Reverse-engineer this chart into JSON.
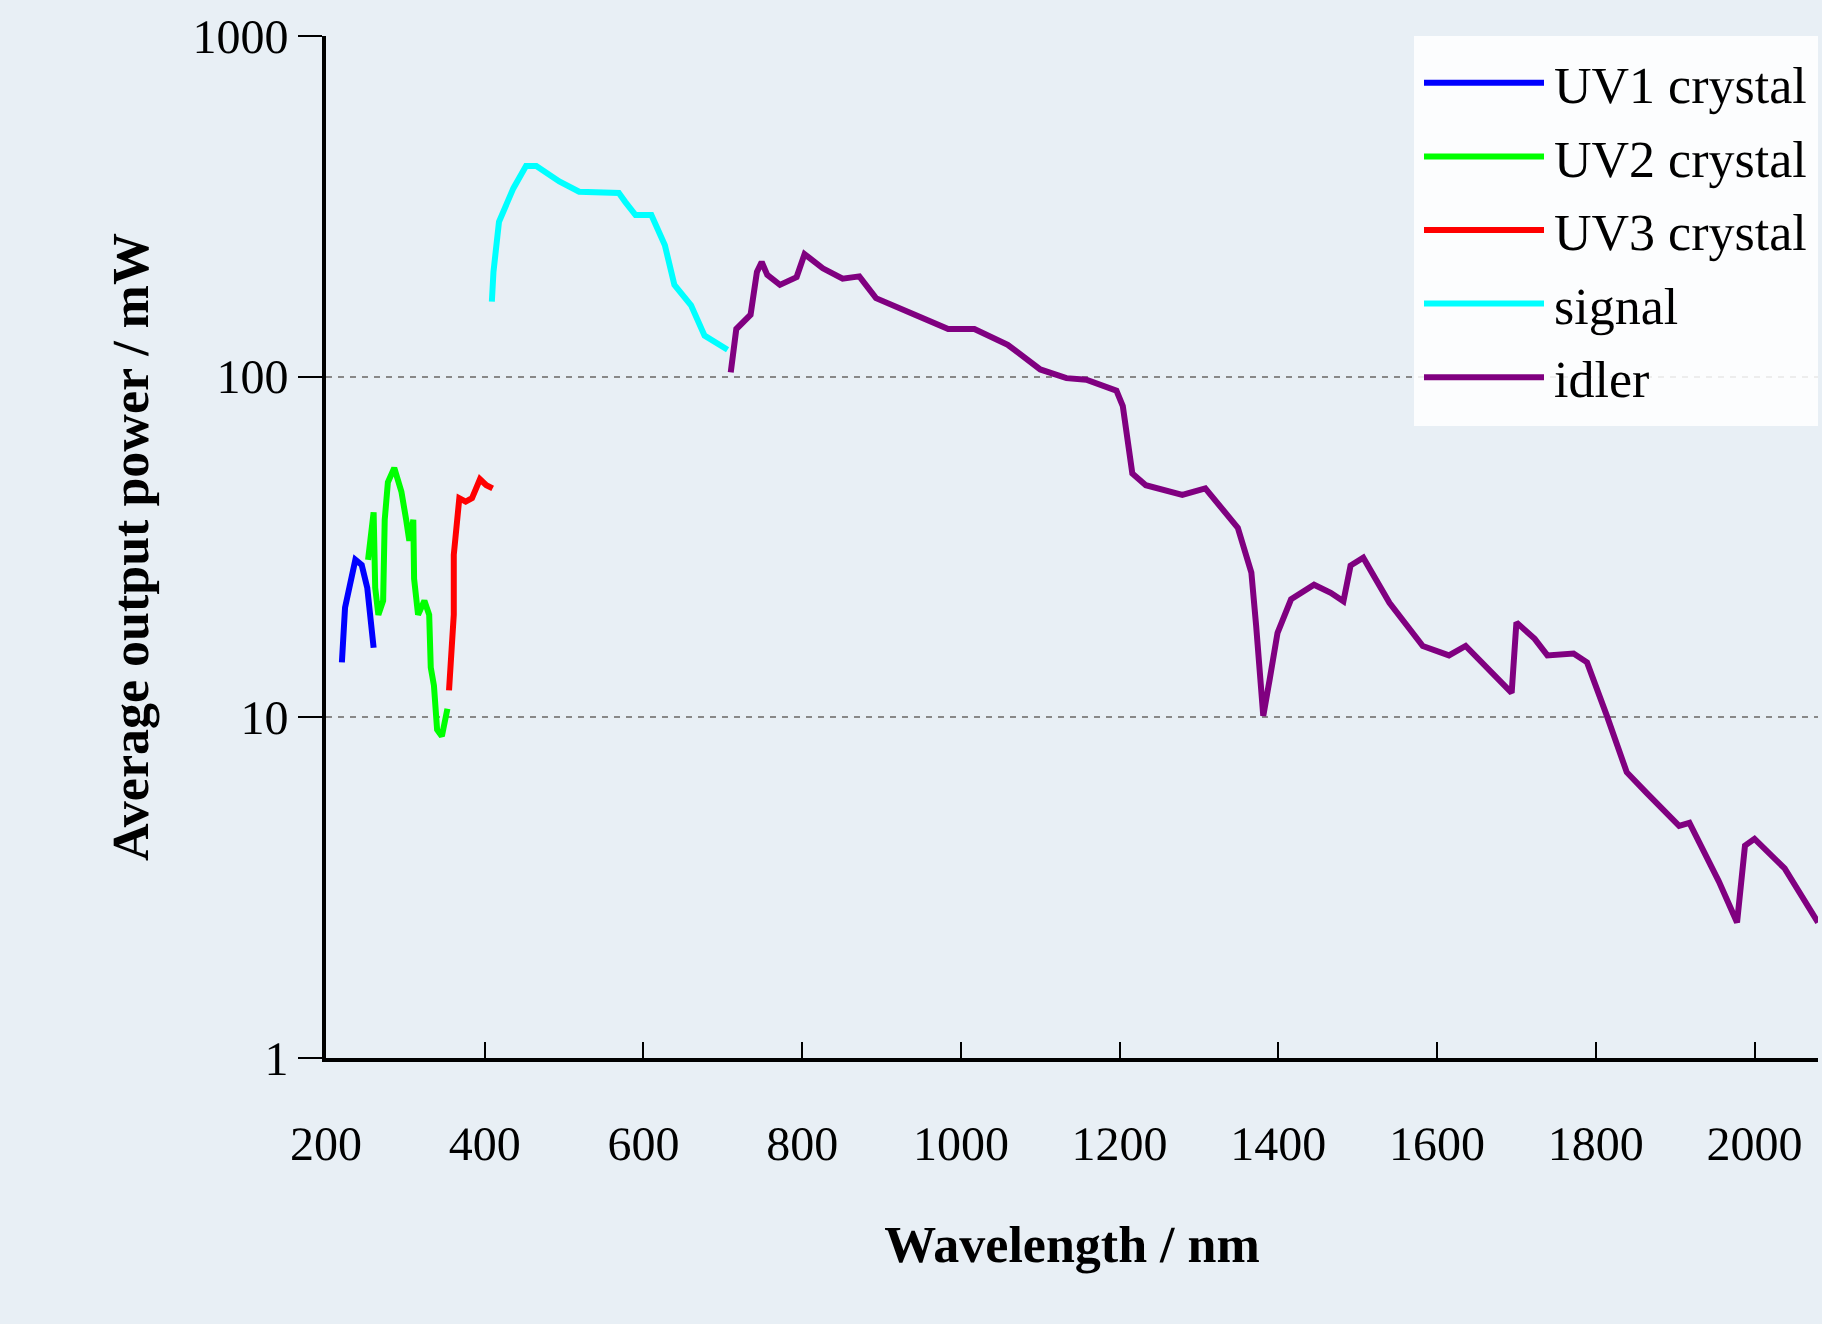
{
  "chart_data": {
    "type": "line",
    "xlabel": "Wavelength / nm",
    "ylabel": "Average output power / mW",
    "log": "y",
    "grid": "y",
    "legend": "top right",
    "line_style": "solid",
    "marker": "none",
    "xlim": [
      200,
      2080
    ],
    "xticks": [
      200,
      400,
      600,
      800,
      1000,
      1200,
      1400,
      1600,
      1800,
      2000
    ],
    "ylim": [
      1,
      1000
    ],
    "yticks": [
      1,
      10,
      100,
      1000
    ],
    "series": [
      {
        "name": "UV1 crystal",
        "color": "#0000ff",
        "x": [
          220,
          224,
          237,
          245,
          252,
          260
        ],
        "values": [
          14.5,
          21,
          29,
          28,
          24,
          16
        ]
      },
      {
        "name": "UV2 crystal",
        "color": "#00ff00",
        "x": [
          253,
          260,
          262,
          266,
          272,
          274,
          278,
          286,
          295,
          301,
          305,
          310,
          311,
          316,
          324,
          330,
          332,
          336,
          340,
          346,
          353
        ],
        "values": [
          29,
          40,
          24,
          20,
          22,
          38,
          49,
          54,
          46,
          38,
          33,
          38,
          25.5,
          20,
          22,
          20,
          14,
          12.4,
          9.2,
          8.8,
          10.6
        ]
      },
      {
        "name": "UV3 crystal",
        "color": "#ff0000",
        "x": [
          355,
          361,
          361,
          368,
          376,
          384,
          394,
          402,
          410
        ],
        "values": [
          12,
          20,
          30,
          44,
          43,
          44,
          50,
          48,
          47
        ]
      },
      {
        "name": "signal",
        "color": "#00ffff",
        "x": [
          409,
          411,
          418,
          436,
          452,
          465,
          494,
          519,
          569,
          577,
          590,
          610,
          627,
          639,
          660,
          677,
          706
        ],
        "values": [
          166,
          203,
          285,
          357,
          415,
          415,
          374,
          349,
          346,
          326,
          298,
          298,
          243,
          186,
          162,
          132,
          120
        ]
      },
      {
        "name": "idler",
        "color": "#800080",
        "x": [
          710,
          717,
          735,
          743,
          749,
          756,
          772,
          793,
          803,
          826,
          851,
          872,
          893,
          942,
          984,
          1017,
          1059,
          1100,
          1133,
          1158,
          1196,
          1204,
          1216,
          1233,
          1279,
          1308,
          1349,
          1366,
          1372,
          1381,
          1389,
          1399,
          1416,
          1445,
          1466,
          1482,
          1491,
          1507,
          1540,
          1582,
          1615,
          1636,
          1694,
          1700,
          1723,
          1739,
          1772,
          1789,
          1814,
          1839,
          1864,
          1905,
          1918,
          1955,
          1978,
          1988,
          2000,
          2038,
          2080
        ],
        "values": [
          103,
          138,
          152,
          203,
          217,
          199,
          186,
          196,
          229,
          208,
          194,
          197,
          170,
          152,
          138,
          138,
          124,
          105,
          99,
          98,
          91,
          82,
          52,
          48,
          45,
          47,
          36,
          26.6,
          18.6,
          10.1,
          12.9,
          17.7,
          22.2,
          24.5,
          23.2,
          21.9,
          27.9,
          29.4,
          21.7,
          16.2,
          15.2,
          16.2,
          11.8,
          19,
          17,
          15.2,
          15.4,
          14.5,
          10.1,
          6.9,
          6.0,
          4.8,
          4.9,
          3.3,
          2.5,
          4.2,
          4.4,
          3.6,
          2.5
        ]
      }
    ]
  }
}
